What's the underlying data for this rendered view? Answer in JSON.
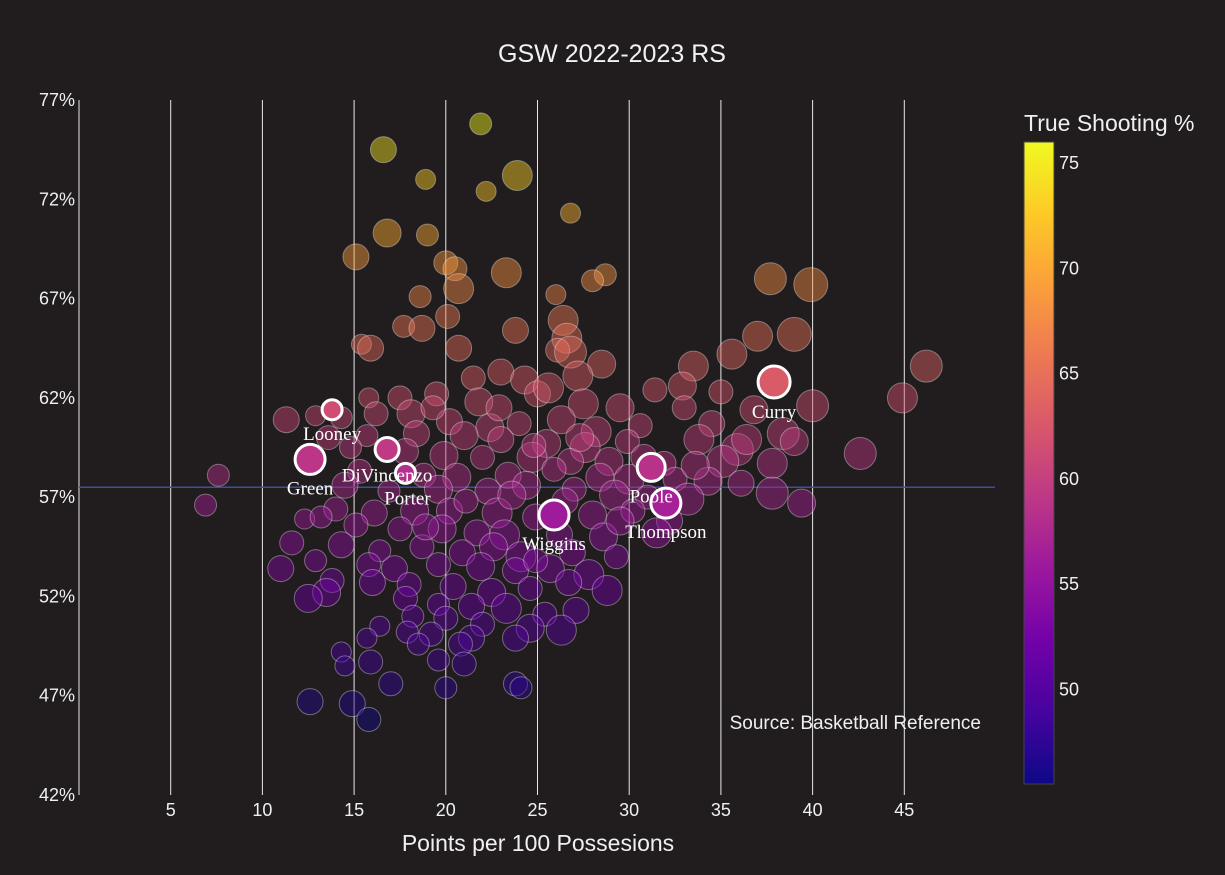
{
  "chart_data": {
    "type": "scatter",
    "title": "GSW 2022-2023 RS",
    "xlabel": "Points per 100 Possesions",
    "ylabel": "",
    "xlim": [
      0,
      50
    ],
    "ylim": [
      42,
      77
    ],
    "x_ticks": [
      5,
      10,
      15,
      20,
      25,
      30,
      35,
      40,
      45
    ],
    "y_ticks": [
      42,
      47,
      52,
      57,
      62,
      67,
      72,
      77
    ],
    "y_tick_suffix": "%",
    "reference_line_y": 57.5,
    "source_note": "Source: Basketball Reference",
    "colorbar": {
      "title": "True Shooting %",
      "range": [
        45.5,
        76
      ],
      "ticks": [
        50,
        55,
        60,
        65,
        70,
        75
      ],
      "colorscale": "plasma"
    },
    "highlighted_players": [
      {
        "name": "Curry",
        "x": 37.9,
        "y": 62.8,
        "size": 16,
        "color": 62.8
      },
      {
        "name": "Looney",
        "x": 13.8,
        "y": 61.4,
        "size": 10,
        "color": 61.4
      },
      {
        "name": "DiVincenzo",
        "x": 16.8,
        "y": 59.4,
        "size": 12,
        "color": 59.4
      },
      {
        "name": "Green",
        "x": 12.6,
        "y": 58.9,
        "size": 15,
        "color": 58.9
      },
      {
        "name": "Porter",
        "x": 17.8,
        "y": 58.2,
        "size": 10,
        "color": 58.2
      },
      {
        "name": "Poole",
        "x": 31.2,
        "y": 58.5,
        "size": 14,
        "color": 58.5
      },
      {
        "name": "Thompson",
        "x": 32.0,
        "y": 56.7,
        "size": 15,
        "color": 56.7
      },
      {
        "name": "Wiggins",
        "x": 25.9,
        "y": 56.1,
        "size": 15,
        "color": 56.1
      }
    ],
    "league_points": [
      [
        21.9,
        75.8,
        11
      ],
      [
        16.6,
        74.5,
        13
      ],
      [
        23.9,
        73.2,
        15
      ],
      [
        18.9,
        73.0,
        10
      ],
      [
        22.2,
        72.4,
        10
      ],
      [
        26.8,
        71.3,
        10
      ],
      [
        16.8,
        70.3,
        14
      ],
      [
        19.0,
        70.2,
        11
      ],
      [
        15.1,
        69.1,
        13
      ],
      [
        20.0,
        68.8,
        12
      ],
      [
        20.5,
        68.5,
        12
      ],
      [
        23.3,
        68.3,
        15
      ],
      [
        28.7,
        68.2,
        11
      ],
      [
        28.0,
        67.9,
        11
      ],
      [
        20.7,
        67.5,
        15
      ],
      [
        37.7,
        68.0,
        16
      ],
      [
        39.9,
        67.7,
        17
      ],
      [
        18.6,
        67.1,
        11
      ],
      [
        26.0,
        67.2,
        10
      ],
      [
        20.1,
        66.1,
        12
      ],
      [
        26.4,
        65.9,
        15
      ],
      [
        17.7,
        65.6,
        11
      ],
      [
        18.7,
        65.5,
        13
      ],
      [
        37.0,
        65.1,
        15
      ],
      [
        23.8,
        65.4,
        13
      ],
      [
        26.6,
        65.0,
        15
      ],
      [
        39.0,
        65.2,
        17
      ],
      [
        15.4,
        64.7,
        10
      ],
      [
        15.9,
        64.5,
        13
      ],
      [
        20.7,
        64.5,
        13
      ],
      [
        26.1,
        64.4,
        12
      ],
      [
        26.8,
        64.3,
        16
      ],
      [
        28.5,
        63.7,
        14
      ],
      [
        35.6,
        64.2,
        15
      ],
      [
        33.5,
        63.6,
        15
      ],
      [
        46.2,
        63.6,
        16
      ],
      [
        21.5,
        63.0,
        12
      ],
      [
        23.0,
        63.3,
        13
      ],
      [
        24.3,
        62.9,
        14
      ],
      [
        27.2,
        63.1,
        15
      ],
      [
        31.4,
        62.4,
        12
      ],
      [
        32.9,
        62.6,
        14
      ],
      [
        35.0,
        62.3,
        12
      ],
      [
        44.9,
        62.0,
        15
      ],
      [
        40.0,
        61.6,
        16
      ],
      [
        15.8,
        62.0,
        10
      ],
      [
        17.5,
        62.0,
        12
      ],
      [
        19.5,
        62.2,
        12
      ],
      [
        21.8,
        61.8,
        14
      ],
      [
        25.0,
        62.2,
        13
      ],
      [
        27.5,
        61.7,
        15
      ],
      [
        29.5,
        61.5,
        14
      ],
      [
        33.0,
        61.5,
        12
      ],
      [
        36.8,
        61.4,
        14
      ],
      [
        11.3,
        60.9,
        13
      ],
      [
        12.9,
        61.1,
        10
      ],
      [
        14.3,
        61.0,
        11
      ],
      [
        16.2,
        61.2,
        12
      ],
      [
        18.1,
        61.2,
        14
      ],
      [
        20.2,
        60.8,
        13
      ],
      [
        22.4,
        60.5,
        14
      ],
      [
        24.0,
        60.7,
        12
      ],
      [
        26.3,
        60.9,
        14
      ],
      [
        28.2,
        60.3,
        15
      ],
      [
        30.6,
        60.6,
        12
      ],
      [
        34.5,
        60.7,
        13
      ],
      [
        38.4,
        60.2,
        16
      ],
      [
        13.6,
        60.0,
        12
      ],
      [
        15.7,
        60.1,
        11
      ],
      [
        18.4,
        60.2,
        13
      ],
      [
        21.0,
        60.1,
        14
      ],
      [
        23.0,
        59.9,
        13
      ],
      [
        25.5,
        59.7,
        14
      ],
      [
        27.6,
        59.5,
        15
      ],
      [
        29.9,
        59.8,
        12
      ],
      [
        33.8,
        59.9,
        15
      ],
      [
        35.9,
        59.4,
        16
      ],
      [
        39.0,
        59.8,
        14
      ],
      [
        42.6,
        59.2,
        16
      ],
      [
        14.8,
        59.5,
        11
      ],
      [
        17.8,
        59.3,
        13
      ],
      [
        19.9,
        59.1,
        14
      ],
      [
        22.0,
        59.0,
        12
      ],
      [
        24.7,
        59.0,
        15
      ],
      [
        26.8,
        58.8,
        13
      ],
      [
        28.9,
        58.8,
        14
      ],
      [
        31.9,
        58.7,
        12
      ],
      [
        35.1,
        58.8,
        16
      ],
      [
        37.8,
        58.7,
        15
      ],
      [
        7.6,
        58.1,
        11
      ],
      [
        15.3,
        58.3,
        12
      ],
      [
        18.8,
        58.1,
        12
      ],
      [
        20.6,
        58.0,
        14
      ],
      [
        23.4,
        58.1,
        13
      ],
      [
        25.9,
        58.4,
        12
      ],
      [
        28.4,
        58.0,
        14
      ],
      [
        30.0,
        57.9,
        15
      ],
      [
        32.5,
        57.9,
        12
      ],
      [
        34.3,
        57.8,
        14
      ],
      [
        36.1,
        57.7,
        13
      ],
      [
        14.5,
        57.6,
        13
      ],
      [
        16.9,
        57.3,
        11
      ],
      [
        19.6,
        57.4,
        14
      ],
      [
        22.3,
        57.3,
        13
      ],
      [
        24.4,
        57.6,
        14
      ],
      [
        27.0,
        57.4,
        12
      ],
      [
        29.2,
        57.1,
        15
      ],
      [
        31.0,
        57.0,
        12
      ],
      [
        33.2,
        56.9,
        16
      ],
      [
        37.8,
        57.2,
        16
      ],
      [
        6.9,
        56.6,
        11
      ],
      [
        14.0,
        56.4,
        12
      ],
      [
        16.1,
        56.2,
        13
      ],
      [
        18.3,
        56.3,
        14
      ],
      [
        20.2,
        56.3,
        13
      ],
      [
        22.8,
        56.2,
        15
      ],
      [
        24.9,
        56.0,
        13
      ],
      [
        28.0,
        56.1,
        14
      ],
      [
        30.2,
        56.3,
        12
      ],
      [
        32.2,
        55.8,
        13
      ],
      [
        39.4,
        56.7,
        14
      ],
      [
        12.3,
        55.9,
        10
      ],
      [
        13.2,
        56.0,
        11
      ],
      [
        15.1,
        55.6,
        12
      ],
      [
        17.5,
        55.4,
        12
      ],
      [
        19.8,
        55.4,
        14
      ],
      [
        21.7,
        55.2,
        13
      ],
      [
        23.2,
        55.1,
        15
      ],
      [
        26.2,
        55.1,
        13
      ],
      [
        28.6,
        55.0,
        14
      ],
      [
        31.5,
        55.2,
        15
      ],
      [
        11.6,
        54.7,
        12
      ],
      [
        14.3,
        54.6,
        13
      ],
      [
        16.4,
        54.3,
        11
      ],
      [
        18.7,
        54.5,
        12
      ],
      [
        20.9,
        54.2,
        13
      ],
      [
        22.6,
        54.5,
        14
      ],
      [
        24.1,
        54.0,
        15
      ],
      [
        26.9,
        54.2,
        13
      ],
      [
        29.3,
        54.0,
        12
      ],
      [
        12.9,
        53.8,
        11
      ],
      [
        15.8,
        53.6,
        12
      ],
      [
        17.2,
        53.4,
        13
      ],
      [
        19.6,
        53.6,
        12
      ],
      [
        21.9,
        53.5,
        14
      ],
      [
        23.8,
        53.3,
        13
      ],
      [
        25.7,
        53.4,
        14
      ],
      [
        27.8,
        53.1,
        15
      ],
      [
        11.0,
        53.4,
        13
      ],
      [
        13.8,
        52.8,
        12
      ],
      [
        16.0,
        52.7,
        13
      ],
      [
        18.0,
        52.6,
        12
      ],
      [
        20.4,
        52.5,
        13
      ],
      [
        22.5,
        52.2,
        14
      ],
      [
        24.6,
        52.4,
        12
      ],
      [
        26.7,
        52.7,
        13
      ],
      [
        28.8,
        52.3,
        15
      ],
      [
        13.5,
        52.2,
        14
      ],
      [
        12.5,
        51.9,
        14
      ],
      [
        17.8,
        51.9,
        12
      ],
      [
        19.6,
        51.6,
        11
      ],
      [
        21.4,
        51.5,
        13
      ],
      [
        23.3,
        51.4,
        15
      ],
      [
        25.4,
        51.1,
        12
      ],
      [
        27.1,
        51.3,
        13
      ],
      [
        18.2,
        51.0,
        11
      ],
      [
        20.0,
        50.9,
        12
      ],
      [
        22.0,
        50.6,
        12
      ],
      [
        24.6,
        50.4,
        14
      ],
      [
        26.3,
        50.3,
        15
      ],
      [
        16.4,
        50.5,
        10
      ],
      [
        17.9,
        50.2,
        11
      ],
      [
        19.2,
        50.1,
        12
      ],
      [
        21.4,
        49.9,
        13
      ],
      [
        15.7,
        49.9,
        10
      ],
      [
        23.8,
        49.9,
        13
      ],
      [
        18.5,
        49.6,
        11
      ],
      [
        20.8,
        49.6,
        12
      ],
      [
        14.3,
        49.2,
        10
      ],
      [
        15.9,
        48.7,
        12
      ],
      [
        19.6,
        48.8,
        11
      ],
      [
        21.0,
        48.6,
        12
      ],
      [
        14.5,
        48.5,
        10
      ],
      [
        17.0,
        47.6,
        12
      ],
      [
        20.0,
        47.4,
        11
      ],
      [
        23.8,
        47.6,
        12
      ],
      [
        24.1,
        47.4,
        11
      ],
      [
        12.6,
        46.7,
        13
      ],
      [
        14.9,
        46.6,
        13
      ],
      [
        15.8,
        45.8,
        12
      ],
      [
        24.8,
        59.6,
        12
      ],
      [
        22.9,
        61.5,
        13
      ],
      [
        27.3,
        60.0,
        14
      ],
      [
        25.6,
        62.5,
        15
      ],
      [
        19.3,
        61.5,
        12
      ],
      [
        30.8,
        59.0,
        13
      ],
      [
        33.6,
        58.6,
        14
      ],
      [
        36.4,
        59.9,
        15
      ],
      [
        21.1,
        56.8,
        12
      ],
      [
        23.6,
        57.1,
        14
      ],
      [
        26.5,
        56.8,
        13
      ],
      [
        29.5,
        55.8,
        14
      ],
      [
        18.9,
        55.5,
        13
      ],
      [
        24.9,
        53.8,
        12
      ]
    ]
  }
}
